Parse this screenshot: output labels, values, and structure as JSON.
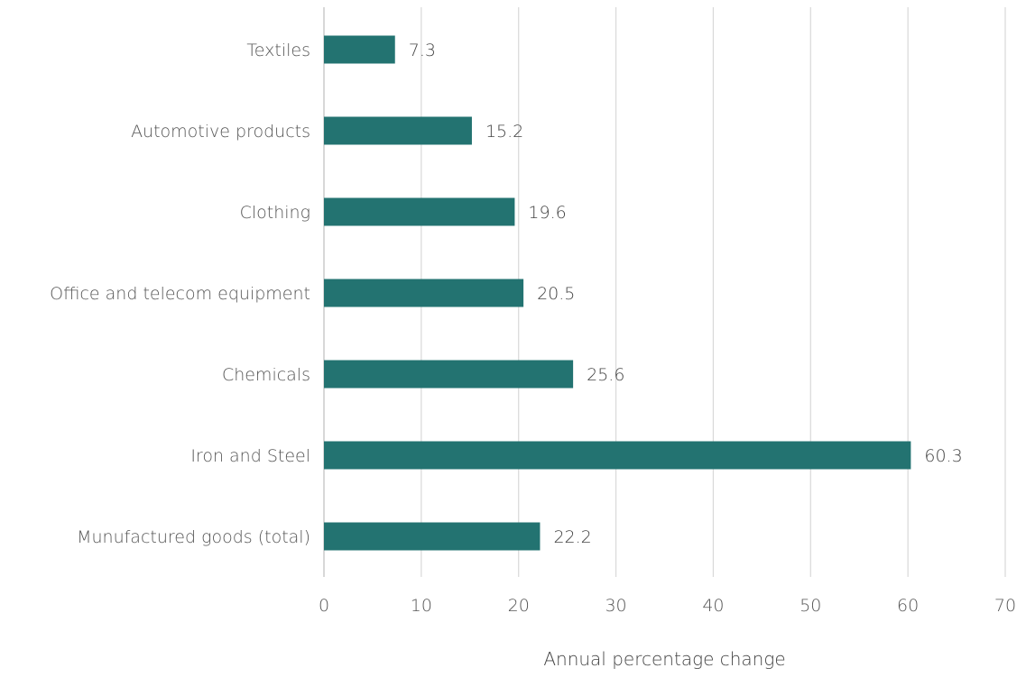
{
  "chart_data": {
    "type": "bar",
    "orientation": "horizontal",
    "categories": [
      "Textiles",
      "Automotive products",
      "Clothing",
      "Office and telecom equipment",
      "Chemicals",
      "Iron and Steel",
      "Munufactured goods (total)"
    ],
    "values": [
      7.3,
      15.2,
      19.6,
      20.5,
      25.6,
      60.3,
      22.2
    ],
    "data_labels": [
      "7.3",
      "15.2",
      "19.6",
      "20.5",
      "25.6",
      "60.3",
      "22.2"
    ],
    "xlabel": "Annual percentage change",
    "ylabel": "",
    "title": "",
    "xlim": [
      0,
      70
    ],
    "x_ticks": [
      0,
      10,
      20,
      30,
      40,
      50,
      60,
      70
    ],
    "x_tick_labels": [
      "0",
      "10",
      "20",
      "30",
      "40",
      "50",
      "60",
      "70"
    ],
    "grid": true,
    "legend": "none",
    "bar_color": "#237371"
  }
}
